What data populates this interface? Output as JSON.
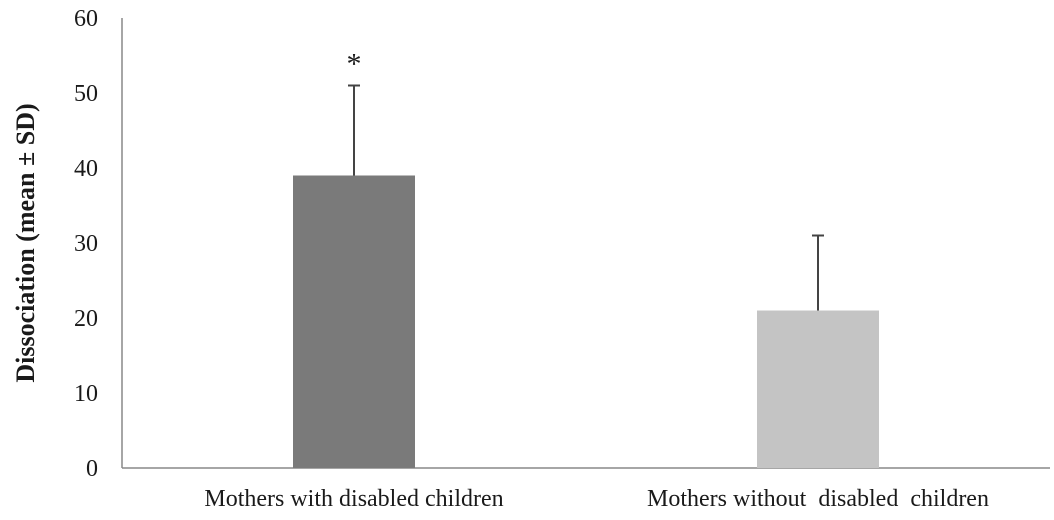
{
  "chart_data": {
    "type": "bar",
    "categories": [
      "Mothers with disabled children",
      "Mothers without  disabled  children"
    ],
    "values": [
      39,
      21
    ],
    "error_plus": [
      12,
      10
    ],
    "colors": [
      "#7a7a7a",
      "#c4c4c4"
    ],
    "annotations": [
      "*",
      ""
    ],
    "xlabel": "",
    "ylabel": "Dissociation (mean ± SD)",
    "ylim": [
      0,
      60
    ],
    "yticks": [
      0,
      10,
      20,
      30,
      40,
      50,
      60
    ],
    "grid": false,
    "legend": "none"
  }
}
